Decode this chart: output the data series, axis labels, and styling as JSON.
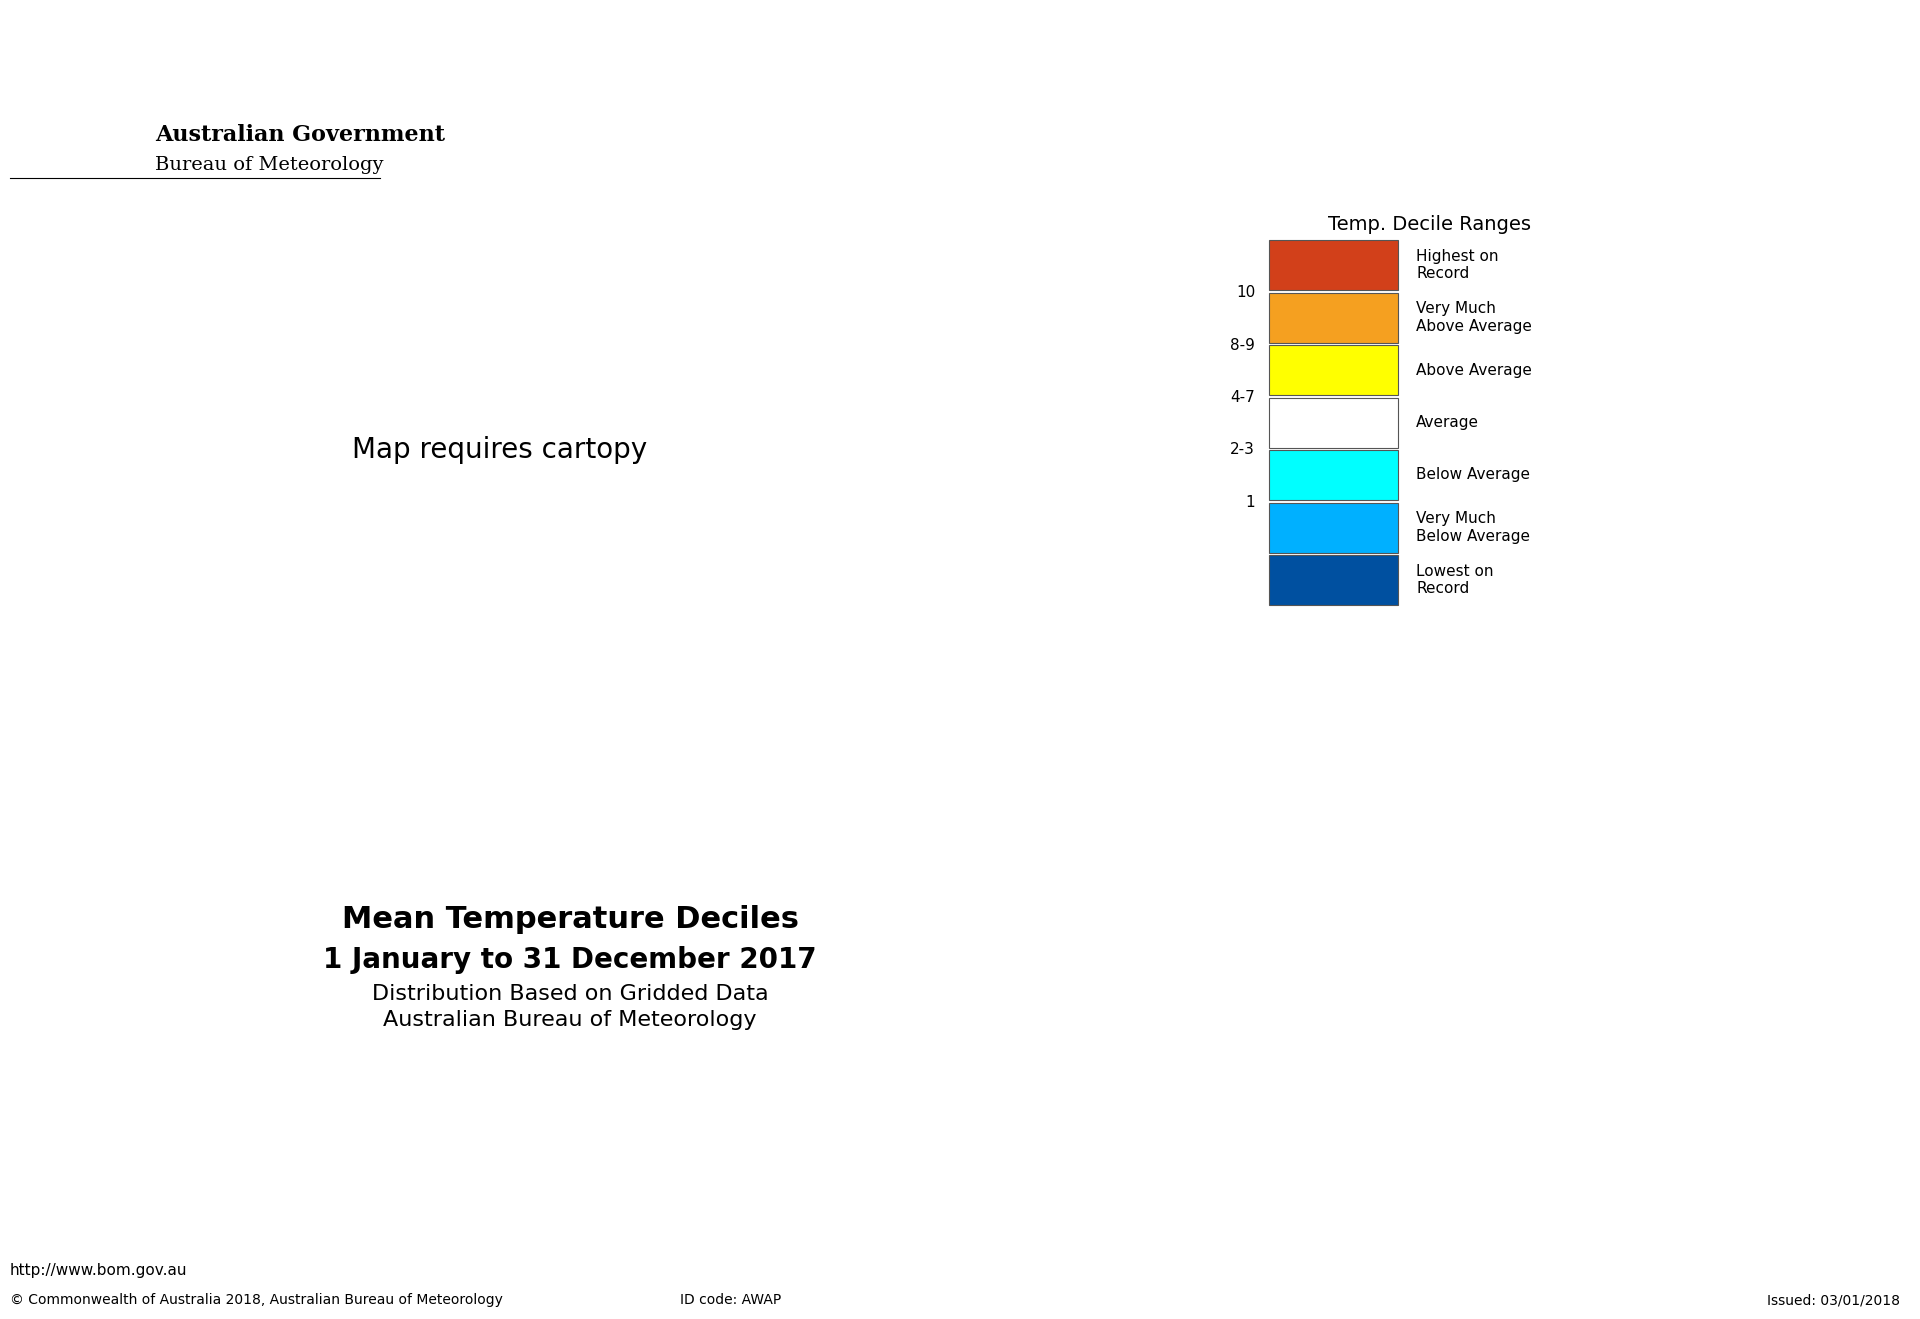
{
  "title_main": "Mean Temperature Deciles",
  "title_sub1": "1 January to 31 December 2017",
  "title_sub2": "Distribution Based on Gridded Data",
  "title_sub3": "Australian Bureau of Meteorology",
  "gov_text": "Australian Government",
  "bom_text": "Bureau of Meteorology",
  "url_text": "http://www.bom.gov.au",
  "copyright_text": "© Commonwealth of Australia 2018, Australian Bureau of Meteorology",
  "id_text": "ID code: AWAP",
  "issued_text": "Issued: 03/01/2018",
  "legend_title": "Temp. Decile Ranges",
  "legend_labels": [
    "Highest on\nRecord",
    "Very Much\nAbove Average",
    "Above Average",
    "Average",
    "Below Average",
    "Very Much\nBelow Average",
    "Lowest on\nRecord"
  ],
  "legend_ticks": [
    "10",
    "8-9",
    "4-7",
    "2-3",
    "1",
    ""
  ],
  "legend_colors": [
    "#D2401A",
    "#F5A020",
    "#FFFF00",
    "#FFFFFF",
    "#00FFFF",
    "#00B0FF",
    "#0050A0"
  ],
  "bg_color": "#FFFFFF",
  "map_border_color": "#000000",
  "dashed_line_color": "#555555",
  "highest_color": "#D2401A",
  "very_much_above_color": "#F5A020",
  "above_color": "#FFFF00",
  "average_color": "#FFFFFF",
  "below_color": "#00FFFF",
  "very_much_below_color": "#00B0FF",
  "lowest_color": "#0050A0"
}
